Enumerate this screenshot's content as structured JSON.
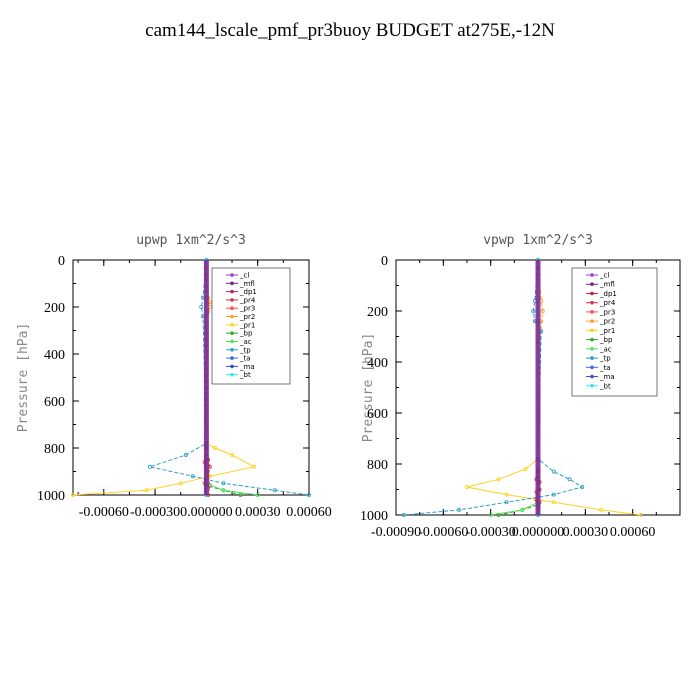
{
  "title": "cam144_lscale_pmf_pr3buoy  BUDGET at275E,-12N",
  "chart_data": [
    {
      "type": "line",
      "title": "upwp   1xm^2/s^3",
      "ylabel": "Pressure [hPa]",
      "ylim": [
        1000,
        0
      ],
      "yticks": [
        0,
        200,
        400,
        600,
        800,
        1000
      ],
      "ytick_labels": [
        "0",
        "200",
        "400",
        "600",
        "800",
        "1000"
      ],
      "xlim": [
        -0.00078,
        0.0006
      ],
      "xticks": [
        -0.0006,
        -0.0003,
        0.0,
        0.0003,
        0.0006
      ],
      "xtick_labels": [
        "-0.00060",
        "-0.00030",
        "0.000000",
        "0.00030",
        "0.00060"
      ],
      "legend": "top-right",
      "series": [
        {
          "name": "_cl",
          "color": "#9b3fcf",
          "p": [
            0,
            1000
          ],
          "v": [
            0,
            0
          ]
        },
        {
          "name": "_mfl",
          "color": "#7a1f8a",
          "p": [
            0,
            1000
          ],
          "v": [
            0,
            0
          ]
        },
        {
          "name": "_dp1",
          "color": "#b0245a",
          "p": [
            0,
            1000
          ],
          "v": [
            0,
            0
          ]
        },
        {
          "name": "_pr4",
          "color": "#d9344a",
          "p": [
            0,
            800,
            850,
            880,
            920,
            960,
            1000
          ],
          "v": [
            0,
            0,
            1e-05,
            2e-05,
            1e-05,
            2e-05,
            1e-05
          ]
        },
        {
          "name": "_pr3",
          "color": "#ff4a4a",
          "p": [
            0,
            800,
            860,
            900,
            950,
            1000
          ],
          "v": [
            0,
            0,
            -1e-05,
            0,
            -1e-05,
            0
          ]
        },
        {
          "name": "_pr2",
          "color": "#ff9f2a",
          "p": [
            0,
            160,
            180,
            200,
            220,
            1000
          ],
          "v": [
            0,
            1e-05,
            2e-05,
            2e-05,
            1e-05,
            0
          ]
        },
        {
          "name": "_pr1",
          "color": "#ffd21f",
          "p": [
            0,
            780,
            800,
            830,
            880,
            920,
            950,
            980,
            1000
          ],
          "v": [
            0,
            0,
            5e-05,
            0.00015,
            0.00028,
            2e-05,
            -0.00015,
            -0.00035,
            -0.00078
          ]
        },
        {
          "name": "_bp",
          "color": "#2ea82e",
          "p": [
            0,
            960,
            980,
            1000
          ],
          "v": [
            0,
            0,
            0.0001,
            0.0002
          ]
        },
        {
          "name": "_ac",
          "color": "#55e055",
          "p": [
            0,
            950,
            980,
            1000
          ],
          "v": [
            0,
            0,
            0.0001,
            0.0003
          ]
        },
        {
          "name": "_tp",
          "color": "#2a9fc8",
          "p": [
            0,
            160,
            200,
            240,
            780,
            830,
            880,
            920,
            950,
            980,
            1000
          ],
          "v": [
            0,
            -2e-05,
            -3e-05,
            -2e-05,
            0,
            -0.00012,
            -0.00033,
            -8e-05,
            0.0001,
            0.0004,
            0.0006
          ]
        },
        {
          "name": "_ta",
          "color": "#3a6fd8",
          "p": [
            0,
            1000
          ],
          "v": [
            0,
            0
          ]
        },
        {
          "name": "_ma",
          "color": "#3a4fbf",
          "p": [
            0,
            1000
          ],
          "v": [
            0,
            0
          ]
        },
        {
          "name": "_bt",
          "color": "#35e8e8",
          "p": [
            0,
            1000
          ],
          "v": [
            0,
            0
          ]
        }
      ]
    },
    {
      "type": "line",
      "title": "vpwp   1xm^2/s^3",
      "ylabel": "Pressure [hPa]",
      "ylim": [
        1000,
        0
      ],
      "yticks": [
        0,
        200,
        400,
        600,
        800,
        1000
      ],
      "ytick_labels": [
        "0",
        "200",
        "400",
        "600",
        "800",
        "1000"
      ],
      "xlim": [
        -0.0009,
        0.0009
      ],
      "xticks": [
        -0.0009,
        -0.0006,
        -0.0003,
        0.0,
        0.0003,
        0.0006
      ],
      "xtick_labels": [
        "-0.00090",
        "-0.00060",
        "-0.00030",
        "0.000000",
        "0.00030",
        "0.00060"
      ],
      "legend": "top-right",
      "series": [
        {
          "name": "_cl",
          "color": "#9b3fcf",
          "p": [
            0,
            1000
          ],
          "v": [
            0,
            0
          ]
        },
        {
          "name": "_mfl",
          "color": "#7a1f8a",
          "p": [
            0,
            1000
          ],
          "v": [
            0,
            0
          ]
        },
        {
          "name": "_dp1",
          "color": "#b0245a",
          "p": [
            0,
            1000
          ],
          "v": [
            0,
            0
          ]
        },
        {
          "name": "_pr4",
          "color": "#d9344a",
          "p": [
            0,
            820,
            860,
            900,
            940,
            1000
          ],
          "v": [
            0,
            0,
            -1e-05,
            1e-05,
            -1e-05,
            0
          ]
        },
        {
          "name": "_pr3",
          "color": "#ff4a4a",
          "p": [
            0,
            830,
            870,
            910,
            950,
            1000
          ],
          "v": [
            0,
            0,
            1e-05,
            -1e-05,
            1e-05,
            0
          ]
        },
        {
          "name": "_pr2",
          "color": "#ff9f2a",
          "p": [
            0,
            160,
            200,
            240,
            280,
            320,
            1000
          ],
          "v": [
            0,
            2e-05,
            3e-05,
            2e-05,
            2e-05,
            0,
            0
          ]
        },
        {
          "name": "_pr1",
          "color": "#ffd21f",
          "p": [
            0,
            780,
            820,
            860,
            890,
            920,
            950,
            980,
            1000
          ],
          "v": [
            0,
            0,
            -8e-05,
            -0.00025,
            -0.00045,
            -0.0002,
            0.0001,
            0.0004,
            0.00065
          ]
        },
        {
          "name": "_bp",
          "color": "#2ea82e",
          "p": [
            0,
            960,
            980,
            1000
          ],
          "v": [
            0,
            0,
            -0.0001,
            -0.00025
          ]
        },
        {
          "name": "_ac",
          "color": "#55e055",
          "p": [
            0,
            950,
            980,
            1000
          ],
          "v": [
            0,
            0,
            -0.0001,
            -0.0003
          ]
        },
        {
          "name": "_tp",
          "color": "#2a9fc8",
          "p": [
            0,
            160,
            200,
            240,
            280,
            780,
            830,
            860,
            890,
            920,
            950,
            980,
            1000
          ],
          "v": [
            0,
            -2e-05,
            -3e-05,
            -2e-05,
            2e-05,
            0,
            0.0001,
            0.0002,
            0.00028,
            0.0001,
            -0.0002,
            -0.0005,
            -0.00085
          ]
        },
        {
          "name": "_ta",
          "color": "#3a6fd8",
          "p": [
            0,
            1000
          ],
          "v": [
            0,
            0
          ]
        },
        {
          "name": "_ma",
          "color": "#3a4fbf",
          "p": [
            0,
            1000
          ],
          "v": [
            0,
            0
          ]
        },
        {
          "name": "_bt",
          "color": "#35e8e8",
          "p": [
            0,
            1000
          ],
          "v": [
            0,
            0
          ]
        }
      ]
    }
  ]
}
